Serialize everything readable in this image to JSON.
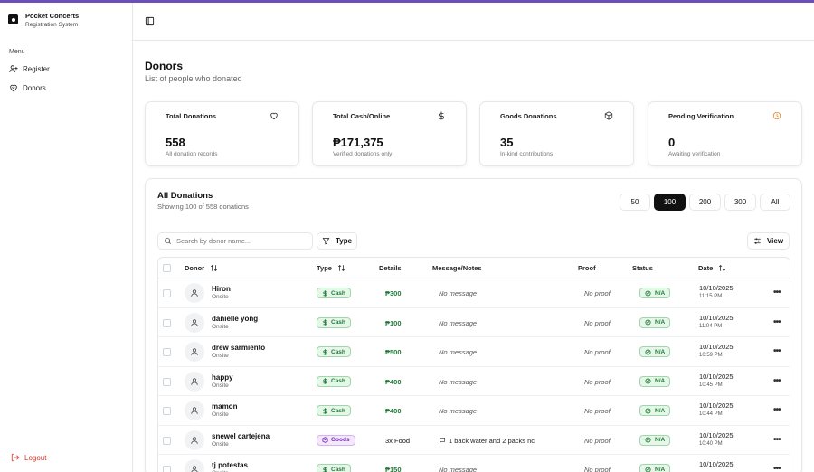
{
  "app": {
    "title": "Pocket Concerts",
    "subtitle": "Registration System"
  },
  "sidebar": {
    "menu_label": "Menu",
    "items": [
      {
        "label": "Register",
        "icon": "user-plus-icon"
      },
      {
        "label": "Donors",
        "icon": "heart-handshake-icon"
      }
    ],
    "logout_label": "Logout"
  },
  "page": {
    "title": "Donors",
    "subtitle": "List of people who donated"
  },
  "stats": [
    {
      "label": "Total Donations",
      "value": "558",
      "caption": "All donation records",
      "icon": "heart-icon"
    },
    {
      "label": "Total Cash/Online",
      "value": "₱171,375",
      "caption": "Verified donations only",
      "icon": "dollar-icon"
    },
    {
      "label": "Goods Donations",
      "value": "35",
      "caption": "In-kind contributions",
      "icon": "package-icon"
    },
    {
      "label": "Pending Verification",
      "value": "0",
      "caption": "Awaiting verification",
      "icon": "clock-icon",
      "icon_color": "#e8892b"
    }
  ],
  "panel": {
    "title": "All Donations",
    "subtitle": "Showing 100 of 558 donations",
    "page_sizes": [
      "50",
      "100",
      "200",
      "300",
      "All"
    ],
    "selected_page_size": "100",
    "search_placeholder": "Search by donor name...",
    "filter_label": "Type",
    "view_label": "View"
  },
  "table": {
    "headers": {
      "donor": "Donor",
      "type": "Type",
      "details": "Details",
      "message": "Message/Notes",
      "proof": "Proof",
      "status": "Status",
      "date": "Date"
    },
    "rows": [
      {
        "name": "Hiron",
        "source": "Onsite",
        "type": "Cash",
        "details": "₱300",
        "message": "No message",
        "proof": "No proof",
        "status": "N/A",
        "date": "10/10/2025",
        "time": "11:15 PM"
      },
      {
        "name": "danielle yong",
        "source": "Onsite",
        "type": "Cash",
        "details": "₱100",
        "message": "No message",
        "proof": "No proof",
        "status": "N/A",
        "date": "10/10/2025",
        "time": "11:04 PM"
      },
      {
        "name": "drew sarmiento",
        "source": "Onsite",
        "type": "Cash",
        "details": "₱500",
        "message": "No message",
        "proof": "No proof",
        "status": "N/A",
        "date": "10/10/2025",
        "time": "10:59 PM"
      },
      {
        "name": "happy",
        "source": "Onsite",
        "type": "Cash",
        "details": "₱400",
        "message": "No message",
        "proof": "No proof",
        "status": "N/A",
        "date": "10/10/2025",
        "time": "10:45 PM"
      },
      {
        "name": "mamon",
        "source": "Onsite",
        "type": "Cash",
        "details": "₱400",
        "message": "No message",
        "proof": "No proof",
        "status": "N/A",
        "date": "10/10/2025",
        "time": "10:44 PM"
      },
      {
        "name": "snewel cartejena",
        "source": "Onsite",
        "type": "Goods",
        "details": "3x Food",
        "message": "1 back water and 2 packs nc",
        "proof": "No proof",
        "status": "N/A",
        "date": "10/10/2025",
        "time": "10:40 PM"
      },
      {
        "name": "tj potestas",
        "source": "Onsite",
        "type": "Cash",
        "details": "₱150",
        "message": "No message",
        "proof": "No proof",
        "status": "N/A",
        "date": "10/10/2025",
        "time": ""
      }
    ]
  },
  "colors": {
    "accent": "#6b4fbb",
    "cash_green": "#1e7a35",
    "goods_purple": "#7b2cbf",
    "logout_red": "#d9342b",
    "pending_orange": "#e8892b"
  }
}
